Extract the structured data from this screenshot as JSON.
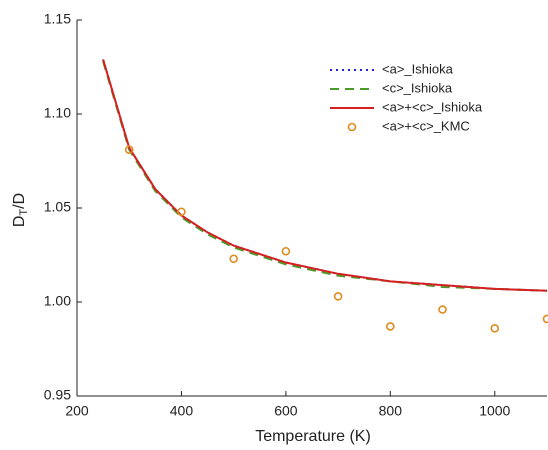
{
  "chart_data": {
    "type": "line",
    "x_label": "Temperature (K)",
    "y_label": [
      "D",
      "T",
      "/D"
    ],
    "xlim": [
      200,
      1100
    ],
    "ylim": [
      0.95,
      1.15
    ],
    "xticks": [
      200,
      400,
      600,
      800,
      1000
    ],
    "yticks": [
      0.95,
      {
        "value": 1.0,
        "label": "1.00"
      },
      1.05,
      {
        "value": 1.1,
        "label": "1.10"
      },
      1.15
    ],
    "legend": "upper right",
    "series": [
      {
        "name": "<a>_Ishioka",
        "color": "#2020e0",
        "linestyle": "dotted",
        "marker": "none",
        "x": [
          250,
          300,
          350,
          400,
          450,
          500,
          600,
          700,
          800,
          900,
          1000,
          1100
        ],
        "values": [
          1.129,
          1.082,
          1.06,
          1.046,
          1.037,
          1.03,
          1.021,
          1.015,
          1.011,
          1.009,
          1.007,
          1.006
        ]
      },
      {
        "name": "<c>_Ishioka",
        "color": "#4a9a2a",
        "linestyle": "dashed",
        "marker": "none",
        "x": [
          250,
          300,
          350,
          400,
          450,
          500,
          600,
          700,
          800,
          900,
          1000,
          1100
        ],
        "values": [
          1.128,
          1.081,
          1.059,
          1.045,
          1.036,
          1.029,
          1.02,
          1.014,
          1.011,
          1.008,
          1.007,
          1.006
        ]
      },
      {
        "name": "<a>+<c>_Ishioka",
        "color": "#d62020",
        "linestyle": "solid",
        "marker": "none",
        "x": [
          250,
          300,
          350,
          400,
          450,
          500,
          600,
          700,
          800,
          900,
          1000,
          1100
        ],
        "values": [
          1.129,
          1.082,
          1.06,
          1.046,
          1.037,
          1.03,
          1.021,
          1.015,
          1.011,
          1.009,
          1.007,
          1.006
        ]
      },
      {
        "name": "<a>+<c>_KMC",
        "color": "#e08a1c",
        "linestyle": "none",
        "marker": "circle",
        "x": [
          300,
          400,
          500,
          600,
          700,
          800,
          900,
          1000,
          1100
        ],
        "values": [
          1.081,
          1.048,
          1.023,
          1.027,
          1.003,
          0.987,
          0.996,
          0.986,
          0.991
        ]
      }
    ]
  }
}
